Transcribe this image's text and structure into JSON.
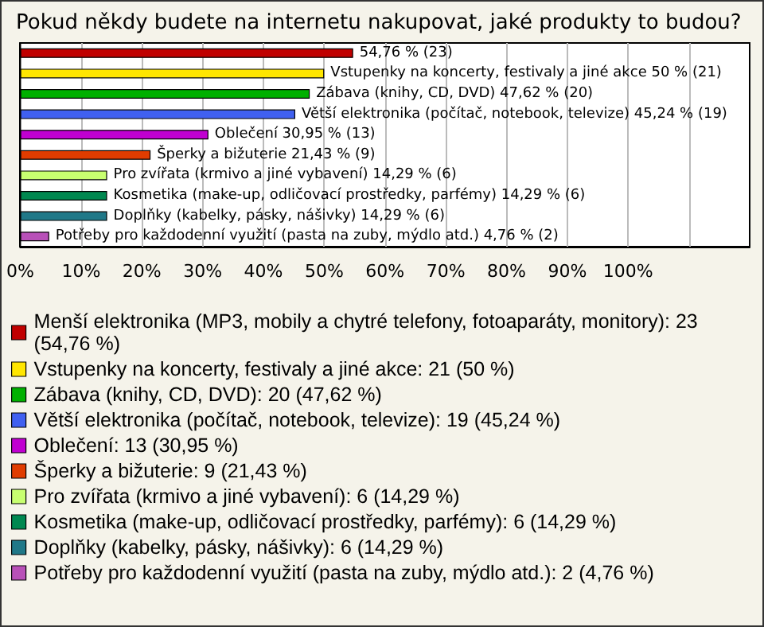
{
  "chart_data": {
    "type": "bar",
    "orientation": "horizontal",
    "stacked": true,
    "title": "Pokud někdy budete na internetu nakupovat, jaké produkty to budou?",
    "categories": [
      null,
      null,
      null,
      null,
      null,
      null,
      null,
      null,
      null,
      null
    ],
    "series": [
      {
        "name": "Menší elektronika (MP3, mobily a chytré telefony, fotoaparáty, monitory): 23 (54,76 %)",
        "color": "#c00000",
        "values": [
          54.76,
          null,
          null,
          null,
          null,
          null,
          null,
          null,
          null,
          null
        ],
        "value_labels": [
          "54,76 % (23)",
          null,
          null,
          null,
          null,
          null,
          null,
          null,
          null,
          null
        ]
      },
      {
        "name": "Vstupenky na koncerty, festivaly a jiné akce: 21 (50 %)",
        "color": "#ffe600",
        "values": [
          null,
          50,
          null,
          null,
          null,
          null,
          null,
          null,
          null,
          null
        ],
        "value_labels": [
          null,
          "Vstupenky na koncerty, festivaly a jiné akce 50 % (21)",
          null,
          null,
          null,
          null,
          null,
          null,
          null,
          null
        ]
      },
      {
        "name": "Zábava (knihy, CD, DVD): 20 (47,62 %)",
        "color": "#00b000",
        "values": [
          null,
          null,
          47.62,
          null,
          null,
          null,
          null,
          null,
          null,
          null
        ],
        "value_labels": [
          null,
          null,
          "Zábava (knihy, CD, DVD) 47,62 % (20)",
          null,
          null,
          null,
          null,
          null,
          null,
          null
        ]
      },
      {
        "name": "Větší elektronika (počítač, notebook, televize): 19 (45,24 %)",
        "color": "#4060f0",
        "values": [
          null,
          null,
          null,
          45.24,
          null,
          null,
          null,
          null,
          null,
          null
        ],
        "value_labels": [
          null,
          null,
          null,
          "Větší elektronika (počítač, notebook, televize) 45,24 % (19)",
          null,
          null,
          null,
          null,
          null,
          null
        ]
      },
      {
        "name": "Oblečení: 13 (30,95 %)",
        "color": "#c000d0",
        "values": [
          null,
          null,
          null,
          null,
          30.95,
          null,
          null,
          null,
          null,
          null
        ],
        "value_labels": [
          null,
          null,
          null,
          null,
          "Oblečení 30,95 % (13)",
          null,
          null,
          null,
          null,
          null
        ]
      },
      {
        "name": "Šperky a bižuterie: 9 (21,43 %)",
        "color": "#e03c00",
        "values": [
          null,
          null,
          null,
          null,
          null,
          21.43,
          null,
          null,
          null,
          null
        ],
        "value_labels": [
          null,
          null,
          null,
          null,
          null,
          "Šperky a bižuterie 21,43 % (9)",
          null,
          null,
          null,
          null
        ]
      },
      {
        "name": "Pro zvířata (krmivo a jiné vybavení): 6 (14,29 %)",
        "color": "#c8ff70",
        "values": [
          null,
          null,
          null,
          null,
          null,
          null,
          14.29,
          null,
          null,
          null
        ],
        "value_labels": [
          null,
          null,
          null,
          null,
          null,
          null,
          "Pro zvířata (krmivo a jiné vybavení) 14,29 % (6)",
          null,
          null,
          null
        ]
      },
      {
        "name": "Kosmetika (make-up, odličovací prostředky, parfémy): 6 (14,29 %)",
        "color": "#008850",
        "values": [
          null,
          null,
          null,
          null,
          null,
          null,
          null,
          14.29,
          null,
          null
        ],
        "value_labels": [
          null,
          null,
          null,
          null,
          null,
          null,
          null,
          "Kosmetika (make-up, odličovací prostředky, parfémy) 14,29 % (6)",
          null,
          null
        ]
      },
      {
        "name": "Doplňky (kabelky, pásky, nášivky): 6 (14,29 %)",
        "color": "#207888",
        "values": [
          null,
          null,
          null,
          null,
          null,
          null,
          null,
          null,
          14.29,
          null
        ],
        "value_labels": [
          null,
          null,
          null,
          null,
          null,
          null,
          null,
          null,
          "Doplňky (kabelky, pásky, nášivky) 14,29 % (6)",
          null
        ]
      },
      {
        "name": "Potřeby pro každodenní využití (pasta na zuby, mýdlo atd.): 2 (4,76 %)",
        "color": "#b850b8",
        "values": [
          null,
          null,
          null,
          null,
          null,
          null,
          null,
          null,
          null,
          4.76
        ],
        "value_labels": [
          null,
          null,
          null,
          null,
          null,
          null,
          null,
          null,
          null,
          "Potřeby pro každodenní využití (pasta na zuby, mýdlo atd.) 4,76 % (2)"
        ]
      }
    ],
    "xlim": [
      0,
      120
    ],
    "xticks": [
      {
        "value": 0,
        "label": "0%"
      },
      {
        "value": 10,
        "label": "10%"
      },
      {
        "value": 20,
        "label": "20%"
      },
      {
        "value": 30,
        "label": "30%"
      },
      {
        "value": 40,
        "label": "40%"
      },
      {
        "value": 50,
        "label": "50%"
      },
      {
        "value": 60,
        "label": "60%"
      },
      {
        "value": 70,
        "label": "70%"
      },
      {
        "value": 80,
        "label": "80%"
      },
      {
        "value": 90,
        "label": "90%"
      },
      {
        "value": 100,
        "label": "100%"
      },
      {
        "value": 110,
        "label": null
      }
    ],
    "grid": "x",
    "legend": "bottom"
  }
}
